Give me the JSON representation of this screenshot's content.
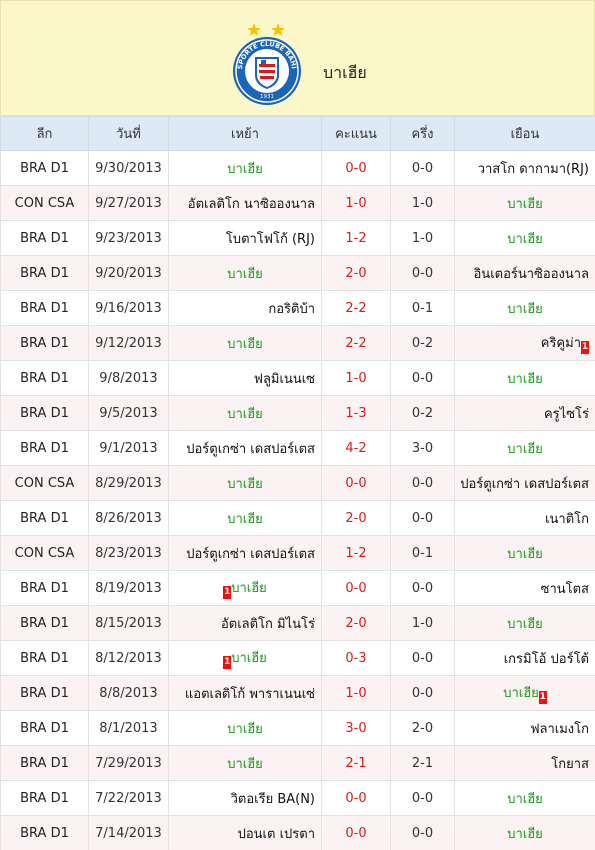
{
  "header": {
    "team_name": "บาเฮีย",
    "logo": {
      "ring_text": "ESPORTE CLUBE BAHIA",
      "year": "1931",
      "stars": 2
    }
  },
  "columns": [
    "ลีก",
    "วันที่",
    "เหย้า",
    "คะแนน",
    "ครึ่ง",
    "เยือน"
  ],
  "colors": {
    "highlight_team": "#1a9a1a",
    "score": "#d41e1e",
    "header_bg": "#fcf7c8",
    "table_head_bg": "#dde9f4",
    "red_card": "#e11111"
  },
  "matches": [
    {
      "league": "BRA D1",
      "date": "9/30/2013",
      "home": "บาเฮีย",
      "score": "0-0",
      "half": "0-0",
      "away": "วาสโก ดากามา(RJ)",
      "hl": "home"
    },
    {
      "league": "CON CSA",
      "date": "9/27/2013",
      "home": "อัตเลติโก นาซิอองนาล",
      "score": "1-0",
      "half": "1-0",
      "away": "บาเฮีย",
      "hl": "away"
    },
    {
      "league": "BRA D1",
      "date": "9/23/2013",
      "home": "โบตาโฟโก้ (RJ)",
      "score": "1-2",
      "half": "1-0",
      "away": "บาเฮีย",
      "hl": "away"
    },
    {
      "league": "BRA D1",
      "date": "9/20/2013",
      "home": "บาเฮีย",
      "score": "2-0",
      "half": "0-0",
      "away": "อินเตอร์นาซิอองนาล",
      "hl": "home"
    },
    {
      "league": "BRA D1",
      "date": "9/16/2013",
      "home": "กอริติบ้า",
      "score": "2-2",
      "half": "0-1",
      "away": "บาเฮีย",
      "hl": "away"
    },
    {
      "league": "BRA D1",
      "date": "9/12/2013",
      "home": "บาเฮีย",
      "score": "2-2",
      "half": "0-2",
      "away": "คริคูม่า",
      "hl": "home",
      "away_card": "1"
    },
    {
      "league": "BRA D1",
      "date": "9/8/2013",
      "home": "ฟลูมิเนนเซ",
      "score": "1-0",
      "half": "0-0",
      "away": "บาเฮีย",
      "hl": "away"
    },
    {
      "league": "BRA D1",
      "date": "9/5/2013",
      "home": "บาเฮีย",
      "score": "1-3",
      "half": "0-2",
      "away": "ครูไซโร่",
      "hl": "home"
    },
    {
      "league": "BRA D1",
      "date": "9/1/2013",
      "home": "ปอร์ตูเกซ่า เดสปอร์เตส",
      "score": "4-2",
      "half": "3-0",
      "away": "บาเฮีย",
      "hl": "away"
    },
    {
      "league": "CON CSA",
      "date": "8/29/2013",
      "home": "บาเฮีย",
      "score": "0-0",
      "half": "0-0",
      "away": "ปอร์ตูเกซ่า เดสปอร์เตส",
      "hl": "home"
    },
    {
      "league": "BRA D1",
      "date": "8/26/2013",
      "home": "บาเฮีย",
      "score": "2-0",
      "half": "0-0",
      "away": "เนาติโก",
      "hl": "home"
    },
    {
      "league": "CON CSA",
      "date": "8/23/2013",
      "home": "ปอร์ตูเกซ่า เดสปอร์เตส",
      "score": "1-2",
      "half": "0-1",
      "away": "บาเฮีย",
      "hl": "away"
    },
    {
      "league": "BRA D1",
      "date": "8/19/2013",
      "home": "บาเฮีย",
      "score": "0-0",
      "half": "0-0",
      "away": "ซานโตส",
      "hl": "home",
      "home_card": "1"
    },
    {
      "league": "BRA D1",
      "date": "8/15/2013",
      "home": "อัตเลติโก มิไนโร่",
      "score": "2-0",
      "half": "1-0",
      "away": "บาเฮีย",
      "hl": "away"
    },
    {
      "league": "BRA D1",
      "date": "8/12/2013",
      "home": "บาเฮีย",
      "score": "0-3",
      "half": "0-0",
      "away": "เกรมิโอ้ ปอร์โต้",
      "hl": "home",
      "home_card": "1"
    },
    {
      "league": "BRA D1",
      "date": "8/8/2013",
      "home": "แอตเลติโก้ พาราเนนเซ่",
      "score": "1-0",
      "half": "0-0",
      "away": "บาเฮีย",
      "hl": "away",
      "away_card": "1"
    },
    {
      "league": "BRA D1",
      "date": "8/1/2013",
      "home": "บาเฮีย",
      "score": "3-0",
      "half": "2-0",
      "away": "ฟลาเมงโก",
      "hl": "home"
    },
    {
      "league": "BRA D1",
      "date": "7/29/2013",
      "home": "บาเฮีย",
      "score": "2-1",
      "half": "2-1",
      "away": "โกยาส",
      "hl": "home"
    },
    {
      "league": "BRA D1",
      "date": "7/22/2013",
      "home": "วิตอเรีย BA(N)",
      "score": "0-0",
      "half": "0-0",
      "away": "บาเฮีย",
      "hl": "away"
    },
    {
      "league": "BRA D1",
      "date": "7/14/2013",
      "home": "ปอนเต เปรตา",
      "score": "0-0",
      "half": "0-0",
      "away": "บาเฮีย",
      "hl": "away"
    }
  ]
}
